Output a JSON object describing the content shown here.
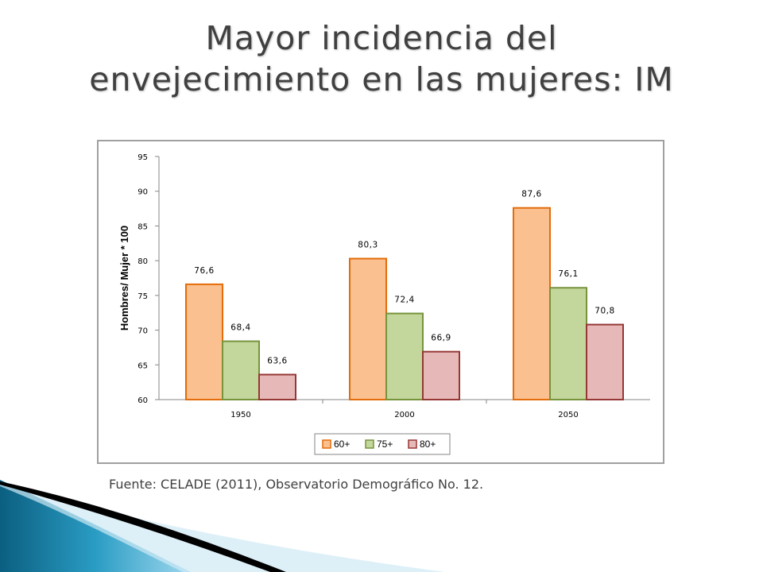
{
  "slide": {
    "title_line1": "Mayor incidencia del",
    "title_line2": "envejecimiento en las mujeres: IM",
    "source": "Fuente: CELADE (2011), Observatorio Demográfico No. 12."
  },
  "chart_data": {
    "type": "bar",
    "title": "",
    "xlabel": "",
    "ylabel": "Hombres/ Mujer * 100",
    "ylim": [
      60,
      95
    ],
    "yticks": [
      60,
      65,
      70,
      75,
      80,
      85,
      90,
      95
    ],
    "categories": [
      "1950",
      "2000",
      "2050"
    ],
    "series": [
      {
        "name": "60+",
        "values": [
          76.6,
          80.3,
          87.6
        ],
        "labels": [
          "76,6",
          "80,3",
          "87,6"
        ],
        "fill": "#fac090",
        "stroke": "#e46c0a"
      },
      {
        "name": "75+",
        "values": [
          68.4,
          72.4,
          76.1
        ],
        "labels": [
          "68,4",
          "72,4",
          "76,1"
        ],
        "fill": "#c3d69b",
        "stroke": "#77933c"
      },
      {
        "name": "80+",
        "values": [
          63.6,
          66.9,
          70.8
        ],
        "labels": [
          "63,6",
          "66,9",
          "70,8"
        ],
        "fill": "#e6b9b8",
        "stroke": "#953735"
      }
    ],
    "grid": false,
    "legend_position": "bottom"
  },
  "decor": {
    "wave_colors": [
      "#0b5f80",
      "#2a9cc4",
      "#8fd0ea",
      "#000000"
    ]
  }
}
